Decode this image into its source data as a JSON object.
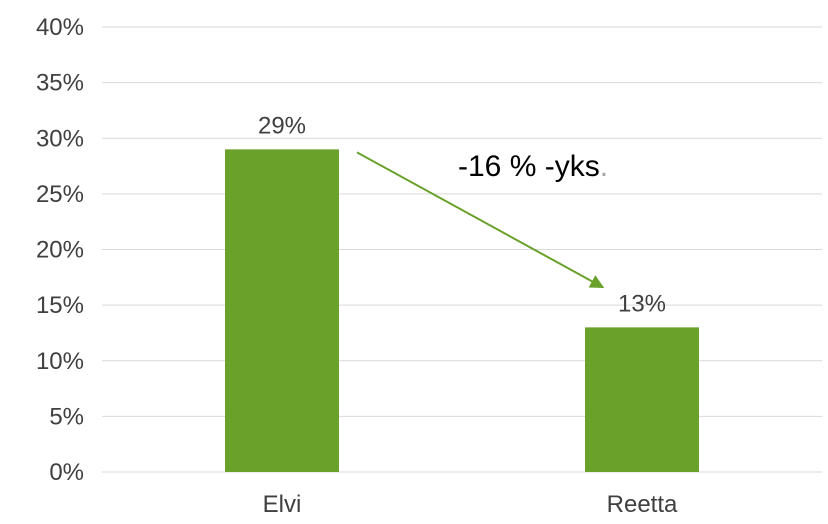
{
  "chart_data": {
    "type": "bar",
    "categories": [
      "Elvi",
      "Reetta"
    ],
    "values": [
      29,
      13
    ],
    "data_labels": [
      "29%",
      "13%"
    ],
    "y_ticks": [
      "0%",
      "5%",
      "10%",
      "15%",
      "20%",
      "25%",
      "30%",
      "35%",
      "40%"
    ],
    "ylim": [
      0,
      40
    ],
    "y_tick_step": 5,
    "grid": true,
    "legend": "none",
    "bar_color": "#6aa12b",
    "arrow_color": "#6aa12b",
    "annotation": {
      "text": "-16 % -yks",
      "suffix": ".",
      "suffix_color": "#a5a5a5"
    }
  }
}
